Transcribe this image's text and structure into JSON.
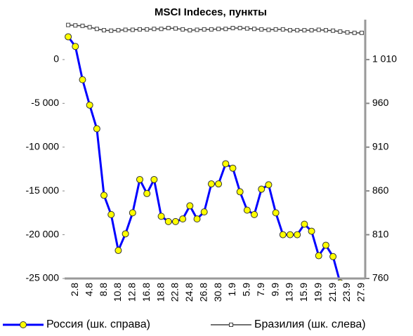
{
  "chart_data": {
    "type": "line",
    "title": "MSCI Indeces, пункты",
    "categories": [
      null,
      "2.8",
      null,
      "4.8",
      null,
      "8.8",
      null,
      "10.8",
      null,
      "12.8",
      null,
      "16.8",
      null,
      "18.8",
      null,
      "22.8",
      null,
      "24.8",
      null,
      "26.8",
      null,
      "30.8",
      null,
      "1.9",
      null,
      "5.9",
      null,
      "7.9",
      null,
      "9.9",
      null,
      "13.9",
      null,
      "15.9",
      null,
      "19.9",
      null,
      "21.9",
      null,
      "23.9",
      null,
      "27.9"
    ],
    "series": [
      {
        "name": "Россия (шк. справа)",
        "color": "#0000ff",
        "axis": "y2",
        "values": [
          1036,
          1025,
          987,
          958,
          931,
          855,
          833,
          792,
          811,
          835,
          873,
          857,
          873,
          831,
          825,
          825,
          828,
          843,
          828,
          836,
          868,
          868,
          891,
          886,
          859,
          838,
          833,
          862,
          867,
          835,
          810,
          810,
          810,
          822,
          814,
          786,
          798,
          785,
          755,
          null,
          null,
          null
        ]
      },
      {
        "name": "Бразилия (шк. слева)",
        "color": "#404040",
        "values": [
          3950,
          3900,
          3850,
          3700,
          3500,
          3350,
          3300,
          3350,
          3400,
          3400,
          3450,
          3450,
          3500,
          3500,
          3600,
          3550,
          3450,
          3350,
          3400,
          3450,
          3450,
          3500,
          3500,
          3600,
          3600,
          3550,
          3500,
          3450,
          3400,
          3450,
          3450,
          3350,
          3350,
          3350,
          3350,
          3400,
          3350,
          3300,
          3200,
          3100,
          3050,
          3050
        ]
      }
    ],
    "ylim": [
      -25000,
      4400
    ],
    "yticks": [
      {
        "value": -25000,
        "label": "-25 000"
      },
      {
        "value": -20000,
        "label": "-20 000"
      },
      {
        "value": -15000,
        "label": "-15 000"
      },
      {
        "value": -10000,
        "label": "-10 000"
      },
      {
        "value": -5000,
        "label": "-5 000"
      },
      0
    ],
    "y2lim": [
      760,
      1054
    ],
    "y2ticks": [
      760,
      810,
      860,
      910,
      960,
      {
        "value": 1010,
        "label": "1 010"
      }
    ]
  }
}
